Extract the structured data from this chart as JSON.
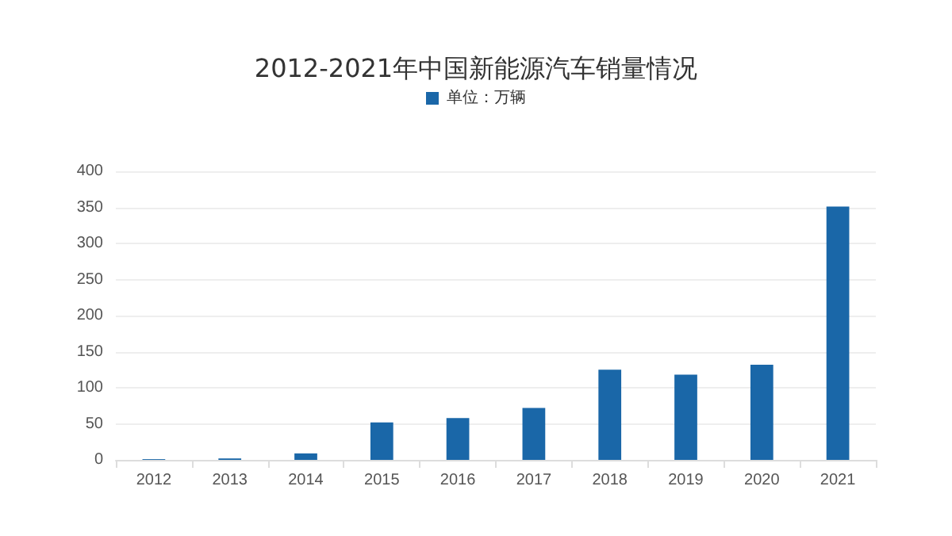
{
  "chart_data": {
    "type": "bar",
    "title": "2012-2021年中国新能源汽车销量情况",
    "categories": [
      "2012",
      "2013",
      "2014",
      "2015",
      "2016",
      "2017",
      "2018",
      "2019",
      "2020",
      "2021"
    ],
    "series": [
      {
        "name": "单位：万辆",
        "color": "#1a67a8",
        "values": [
          1,
          2,
          9,
          52,
          58,
          72,
          125,
          118,
          132,
          351
        ]
      }
    ],
    "ylim": [
      0,
      400
    ],
    "yticks": [
      0,
      50,
      100,
      150,
      200,
      250,
      300,
      350,
      400
    ],
    "grid": "y",
    "legend": "top"
  }
}
